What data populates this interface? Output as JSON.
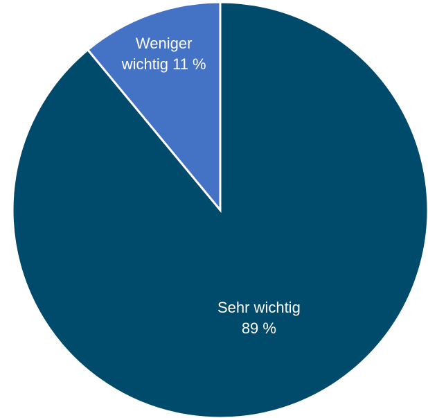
{
  "chart_data": {
    "type": "pie",
    "title": "",
    "slices": [
      {
        "category": "Sehr wichtig",
        "value": 89,
        "label_lines": [
          "Sehr wichtig",
          "89 %"
        ],
        "color": "#004a6b"
      },
      {
        "category": "Weniger wichtig",
        "value": 11,
        "label_lines": [
          "Weniger",
          "wichtig 11 %"
        ],
        "color": "#4472c4"
      }
    ],
    "start_angle": "12 o'clock",
    "direction": "clockwise",
    "legend": "none"
  }
}
